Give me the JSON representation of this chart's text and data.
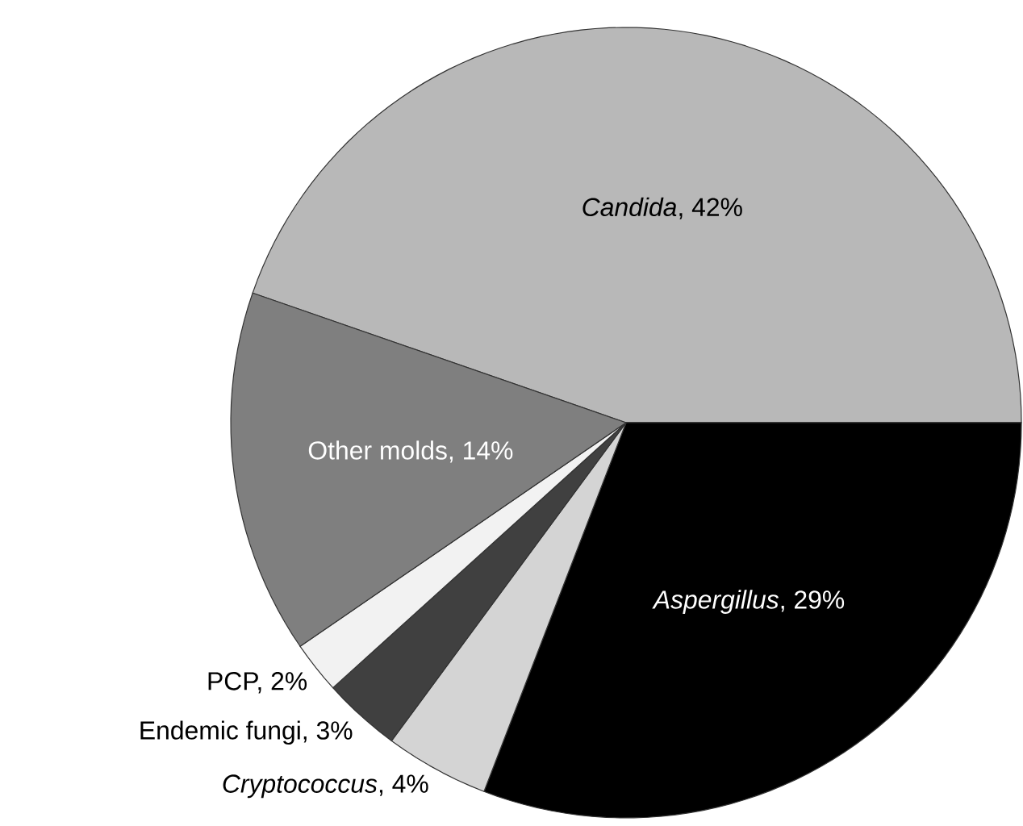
{
  "chart_data": {
    "type": "pie",
    "categories": [
      "*Candida*, 42%",
      "*Aspergillus*, 29%",
      "*Cryptococcus*, 4%",
      "Endemic fungi, 3%",
      "PCP, 2%",
      "Other molds, 14%"
    ],
    "values": [
      42,
      29,
      4,
      3,
      2,
      14
    ],
    "colors": [
      "#b8b8b8",
      "#000000",
      "#d4d4d4",
      "#404040",
      "#f2f2f2",
      "#7f7f7f"
    ]
  }
}
